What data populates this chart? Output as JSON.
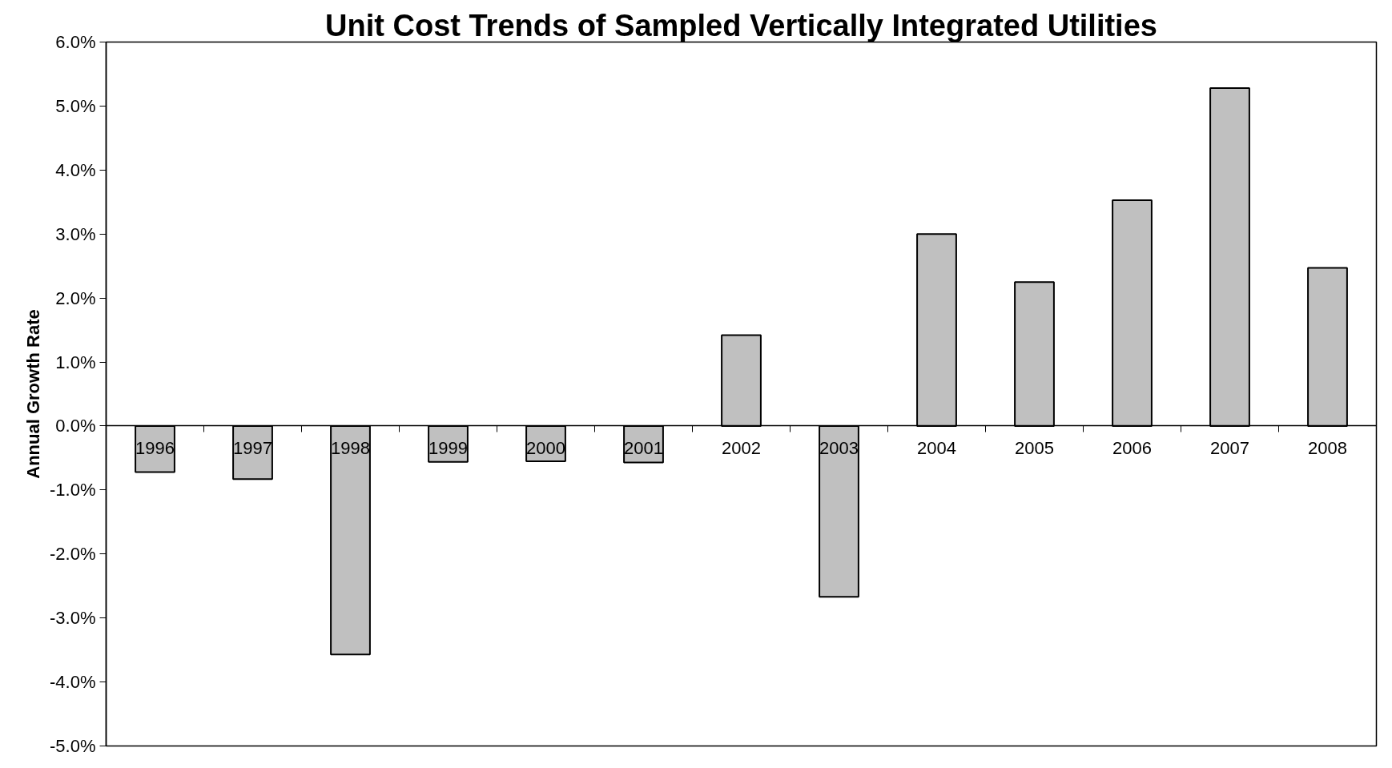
{
  "chart_data": {
    "type": "bar",
    "title": "Unit Cost Trends of Sampled Vertically Integrated Utilities",
    "ylabel": "Annual Growth Rate",
    "categories": [
      "1996",
      "1997",
      "1998",
      "1999",
      "2000",
      "2001",
      "2002",
      "2003",
      "2004",
      "2005",
      "2006",
      "2007",
      "2008"
    ],
    "values": [
      -0.72,
      -0.83,
      -3.57,
      -0.56,
      -0.55,
      -0.57,
      1.42,
      -2.67,
      3.0,
      2.25,
      3.53,
      5.28,
      2.47
    ],
    "color": "#c0c0c0",
    "ylim": [
      -5,
      6
    ],
    "yticks": [
      {
        "value": -5,
        "label": "-5.0%"
      },
      {
        "value": -4,
        "label": "-4.0%"
      },
      {
        "value": -3,
        "label": "-3.0%"
      },
      {
        "value": -2,
        "label": "-2.0%"
      },
      {
        "value": -1,
        "label": "-1.0%"
      },
      {
        "value": 0,
        "label": "0.0%"
      },
      {
        "value": 1,
        "label": "1.0%"
      },
      {
        "value": 2,
        "label": "2.0%"
      },
      {
        "value": 3,
        "label": "3.0%"
      },
      {
        "value": 4,
        "label": "4.0%"
      },
      {
        "value": 5,
        "label": "5.0%"
      },
      {
        "value": 6,
        "label": "6.0%"
      }
    ],
    "grid": false
  }
}
